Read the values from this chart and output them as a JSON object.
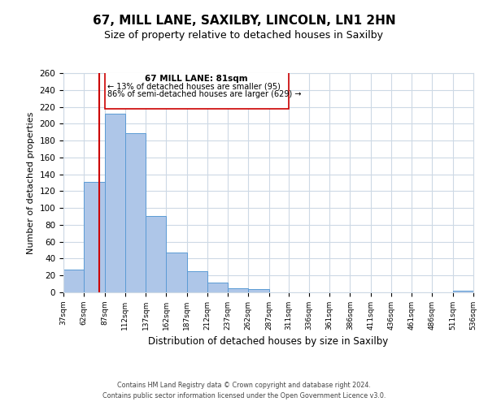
{
  "title": "67, MILL LANE, SAXILBY, LINCOLN, LN1 2HN",
  "subtitle": "Size of property relative to detached houses in Saxilby",
  "xlabel": "Distribution of detached houses by size in Saxilby",
  "ylabel": "Number of detached properties",
  "bar_edges": [
    37,
    62,
    87,
    112,
    137,
    162,
    187,
    212,
    237,
    262,
    287,
    311,
    336,
    361,
    386,
    411,
    436,
    461,
    486,
    511,
    536
  ],
  "bar_heights": [
    27,
    131,
    212,
    189,
    91,
    47,
    25,
    12,
    5,
    4,
    0,
    0,
    0,
    0,
    0,
    0,
    0,
    0,
    0,
    2
  ],
  "bar_color": "#aec6e8",
  "bar_edgecolor": "#5b9bd5",
  "vline_x": 81,
  "vline_color": "#cc0000",
  "ylim": [
    0,
    260
  ],
  "yticks": [
    0,
    20,
    40,
    60,
    80,
    100,
    120,
    140,
    160,
    180,
    200,
    220,
    240,
    260
  ],
  "annotation_text_line1": "67 MILL LANE: 81sqm",
  "annotation_text_line2": "← 13% of detached houses are smaller (95)",
  "annotation_text_line3": "86% of semi-detached houses are larger (629) →",
  "annotation_box_color": "#ffffff",
  "annotation_box_edgecolor": "#cc0000",
  "footer_line1": "Contains HM Land Registry data © Crown copyright and database right 2024.",
  "footer_line2": "Contains public sector information licensed under the Open Government Licence v3.0.",
  "background_color": "#ffffff",
  "grid_color": "#cdd9e5",
  "tick_labels": [
    "37sqm",
    "62sqm",
    "87sqm",
    "112sqm",
    "137sqm",
    "162sqm",
    "187sqm",
    "212sqm",
    "237sqm",
    "262sqm",
    "287sqm",
    "311sqm",
    "336sqm",
    "361sqm",
    "386sqm",
    "411sqm",
    "436sqm",
    "461sqm",
    "486sqm",
    "511sqm",
    "536sqm"
  ]
}
